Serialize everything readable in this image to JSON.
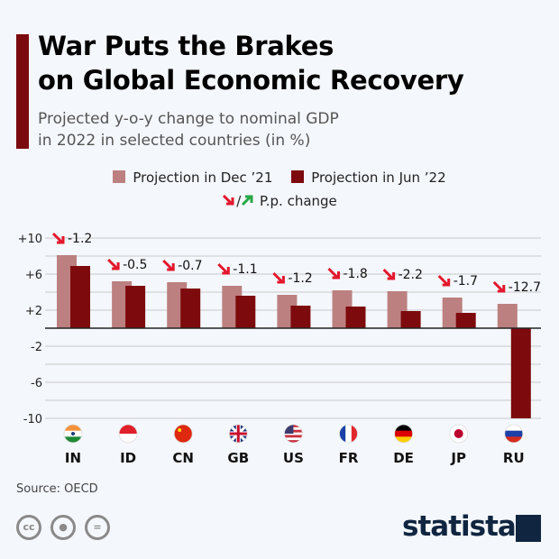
{
  "header": {
    "title_line1": "War Puts the Brakes",
    "title_line2": "on Global Economic Recovery",
    "subtitle_line1": "Projected y-o-y change to nominal GDP",
    "subtitle_line2": "in 2022 in selected countries (in %)"
  },
  "legend": {
    "dec_label": "Projection in Dec ’21",
    "jun_label": "Projection in Jun ’22",
    "change_label": "P.p. change",
    "change_sep": "/"
  },
  "colors": {
    "dec": "#bc8080",
    "jun": "#7d0a0d",
    "down_arrow": "#e3172d",
    "up_arrow": "#27a844",
    "grid": "#c8c8c8"
  },
  "chart_data": {
    "type": "bar",
    "categories": [
      "IN",
      "ID",
      "CN",
      "GB",
      "US",
      "FR",
      "DE",
      "JP",
      "RU"
    ],
    "series": [
      {
        "name": "Projection in Dec ’21",
        "values": [
          8.1,
          5.2,
          5.1,
          4.7,
          3.7,
          4.2,
          4.1,
          3.4,
          2.7
        ]
      },
      {
        "name": "Projection in Jun ’22",
        "values": [
          6.9,
          4.7,
          4.4,
          3.6,
          2.5,
          2.4,
          1.9,
          1.7,
          -10.0
        ]
      }
    ],
    "pp_change": [
      "-1.2",
      "-0.5",
      "-0.7",
      "-1.1",
      "-1.2",
      "-1.8",
      "-2.2",
      "-1.7",
      "-12.7"
    ],
    "ytick_labels": [
      "+10",
      "+6",
      "+2",
      "-2",
      "-6",
      "-10"
    ],
    "yticks": [
      10,
      6,
      2,
      -2,
      -6,
      -10
    ],
    "ylim": [
      -10,
      10
    ],
    "grid": true,
    "legend_position": "top"
  },
  "footer": {
    "source": "Source: OECD",
    "brand": "statista",
    "license_icons": [
      "cc-icon",
      "by-icon",
      "nd-icon"
    ]
  }
}
